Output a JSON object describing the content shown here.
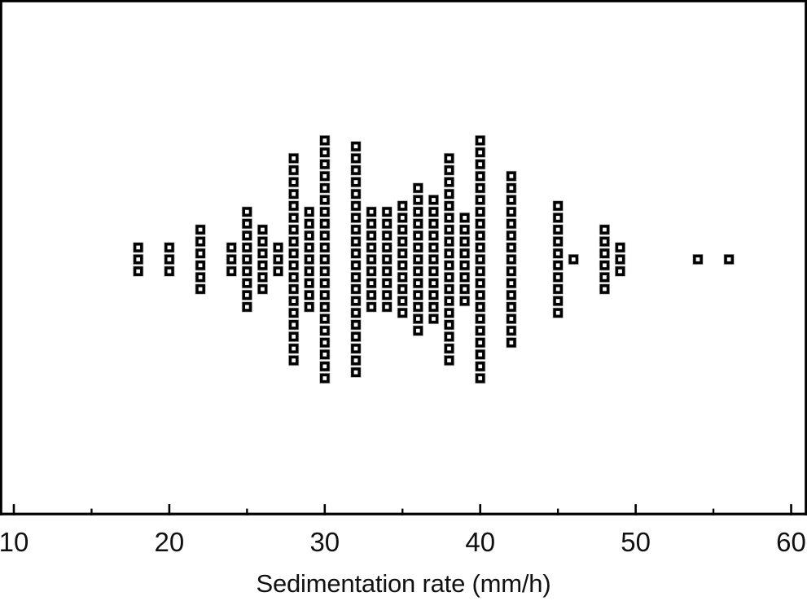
{
  "chart_data": {
    "type": "dotplot",
    "xlabel": "Sedimentation rate (mm/h)",
    "xlim": [
      9.11,
      61.02
    ],
    "x_ticks_major": [
      10,
      20,
      30,
      40,
      50,
      60
    ],
    "x_tick_labels": [
      "10",
      "20",
      "30",
      "40",
      "50",
      "60"
    ],
    "x_ticks_minor": [
      15,
      25,
      35,
      45,
      55
    ],
    "grid": false,
    "legend": null,
    "marker": "black-square-with-white-center",
    "colors": {
      "marker_fill": "#000000",
      "marker_center": "#ffffff",
      "marker_edge": "#b5b5b5",
      "axis": "#000000",
      "background": "#ffffff"
    },
    "points": [
      {
        "x": 18,
        "count": 3
      },
      {
        "x": 20,
        "count": 3
      },
      {
        "x": 22,
        "count": 6
      },
      {
        "x": 24,
        "count": 3
      },
      {
        "x": 25,
        "count": 9
      },
      {
        "x": 26,
        "count": 6
      },
      {
        "x": 27,
        "count": 3
      },
      {
        "x": 28,
        "count": 18
      },
      {
        "x": 29,
        "count": 9
      },
      {
        "x": 30,
        "count": 21
      },
      {
        "x": 32,
        "count": 20
      },
      {
        "x": 33,
        "count": 9
      },
      {
        "x": 34,
        "count": 9
      },
      {
        "x": 35,
        "count": 10
      },
      {
        "x": 36,
        "count": 13
      },
      {
        "x": 37,
        "count": 11
      },
      {
        "x": 38,
        "count": 18
      },
      {
        "x": 39,
        "count": 8
      },
      {
        "x": 40,
        "count": 21
      },
      {
        "x": 42,
        "count": 15
      },
      {
        "x": 45,
        "count": 10
      },
      {
        "x": 46,
        "count": 1
      },
      {
        "x": 48,
        "count": 6
      },
      {
        "x": 49,
        "count": 3
      },
      {
        "x": 54,
        "count": 1
      },
      {
        "x": 56,
        "count": 1
      }
    ]
  }
}
